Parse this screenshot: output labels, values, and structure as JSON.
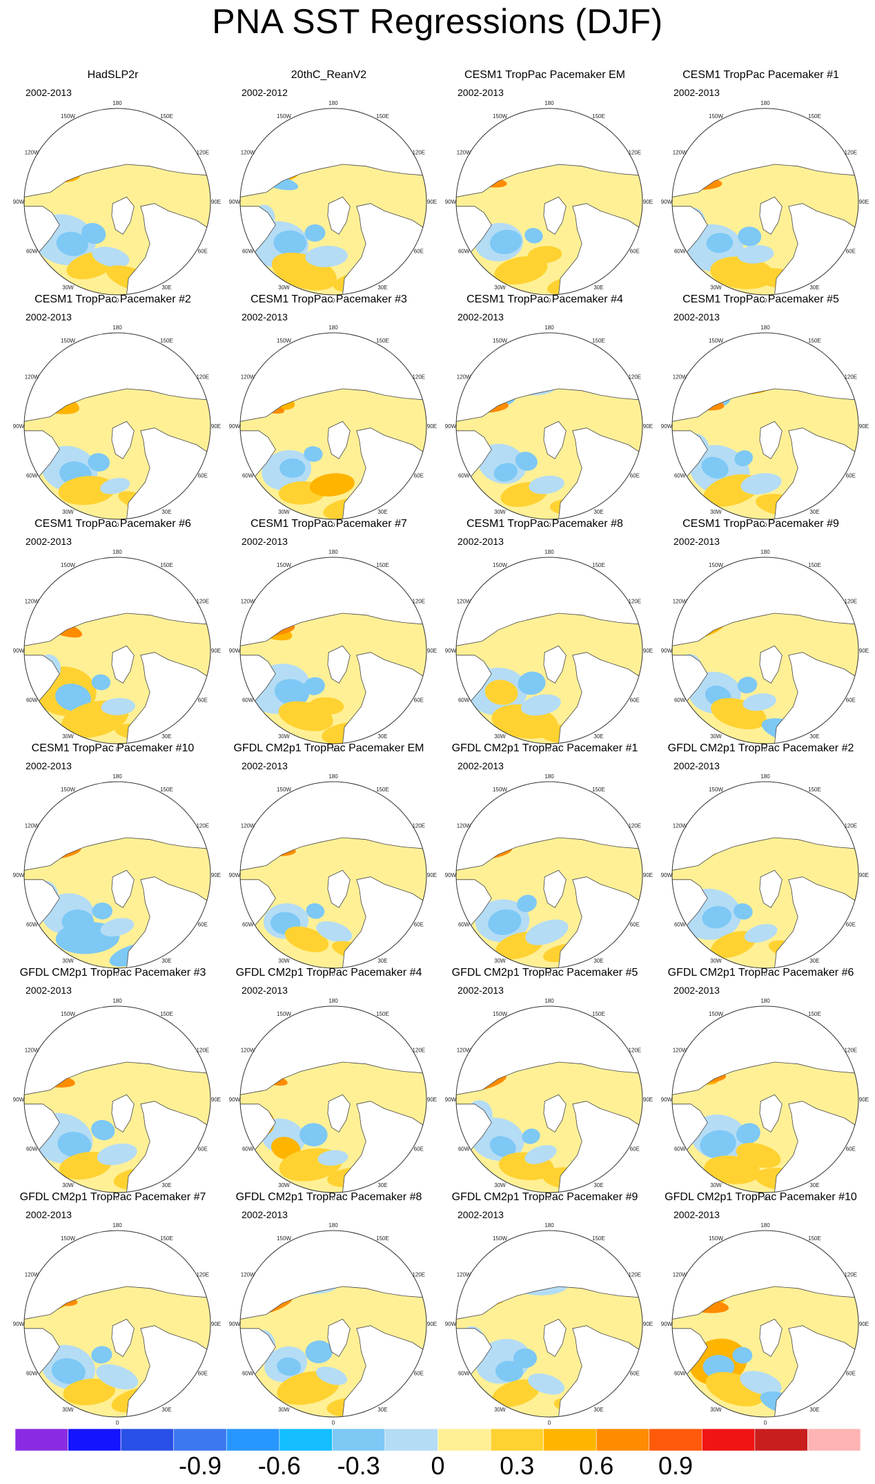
{
  "page_title": "PNA SST Regressions (DJF)",
  "chart_data": {
    "type": "heatmap",
    "title": "PNA SST Regressions (DJF)",
    "projection": "polar stereographic, north pole",
    "longitude_labels": [
      "180",
      "150E",
      "120E",
      "90E",
      "60E",
      "30E",
      "0",
      "30W",
      "60W",
      "90W",
      "120W",
      "150W"
    ],
    "panels": [
      {
        "name": "HadSLP2r",
        "period": "2002-2013"
      },
      {
        "name": "20thC_ReanV2",
        "period": "2002-2012"
      },
      {
        "name": "CESM1 TropPac Pacemaker EM",
        "period": "2002-2013"
      },
      {
        "name": "CESM1 TropPac Pacemaker #1",
        "period": "2002-2013"
      },
      {
        "name": "CESM1 TropPac Pacemaker #2",
        "period": "2002-2013"
      },
      {
        "name": "CESM1 TropPac Pacemaker #3",
        "period": "2002-2013"
      },
      {
        "name": "CESM1 TropPac Pacemaker #4",
        "period": "2002-2013"
      },
      {
        "name": "CESM1 TropPac Pacemaker #5",
        "period": "2002-2013"
      },
      {
        "name": "CESM1 TropPac Pacemaker #6",
        "period": "2002-2013"
      },
      {
        "name": "CESM1 TropPac Pacemaker #7",
        "period": "2002-2013"
      },
      {
        "name": "CESM1 TropPac Pacemaker #8",
        "period": "2002-2013"
      },
      {
        "name": "CESM1 TropPac Pacemaker #9",
        "period": "2002-2013"
      },
      {
        "name": "CESM1 TropPac Pacemaker #10",
        "period": "2002-2013"
      },
      {
        "name": "GFDL CM2p1 TropPac Pacemaker EM",
        "period": "2002-2013"
      },
      {
        "name": "GFDL CM2p1 TropPac Pacemaker #1",
        "period": "2002-2013"
      },
      {
        "name": "GFDL CM2p1 TropPac Pacemaker #2",
        "period": "2002-2013"
      },
      {
        "name": "GFDL CM2p1 TropPac Pacemaker #3",
        "period": "2002-2013"
      },
      {
        "name": "GFDL CM2p1 TropPac Pacemaker #4",
        "period": "2002-2013"
      },
      {
        "name": "GFDL CM2p1 TropPac Pacemaker #5",
        "period": "2002-2013"
      },
      {
        "name": "GFDL CM2p1 TropPac Pacemaker #6",
        "period": "2002-2013"
      },
      {
        "name": "GFDL CM2p1 TropPac Pacemaker #7",
        "period": "2002-2013"
      },
      {
        "name": "GFDL CM2p1 TropPac Pacemaker #8",
        "period": "2002-2013"
      },
      {
        "name": "GFDL CM2p1 TropPac Pacemaker #9",
        "period": "2002-2013"
      },
      {
        "name": "GFDL CM2p1 TropPac Pacemaker #10",
        "period": "2002-2013"
      }
    ],
    "colorbar": {
      "colors": [
        "#8a2be2",
        "#1414ff",
        "#2850e6",
        "#3c78f0",
        "#2896ff",
        "#14beff",
        "#7dc8f5",
        "#b4dcf5",
        "#fff096",
        "#ffd232",
        "#ffb400",
        "#ff8c00",
        "#ff5a0a",
        "#f01414",
        "#c81e1e",
        "#ffb4b4"
      ],
      "tick_values": [
        -0.9,
        -0.6,
        -0.3,
        0,
        0.3,
        0.6,
        0.9
      ],
      "tick_labels": [
        "-0.9",
        "-0.6",
        "-0.3",
        "0",
        "0.3",
        "0.6",
        "0.9"
      ]
    }
  }
}
